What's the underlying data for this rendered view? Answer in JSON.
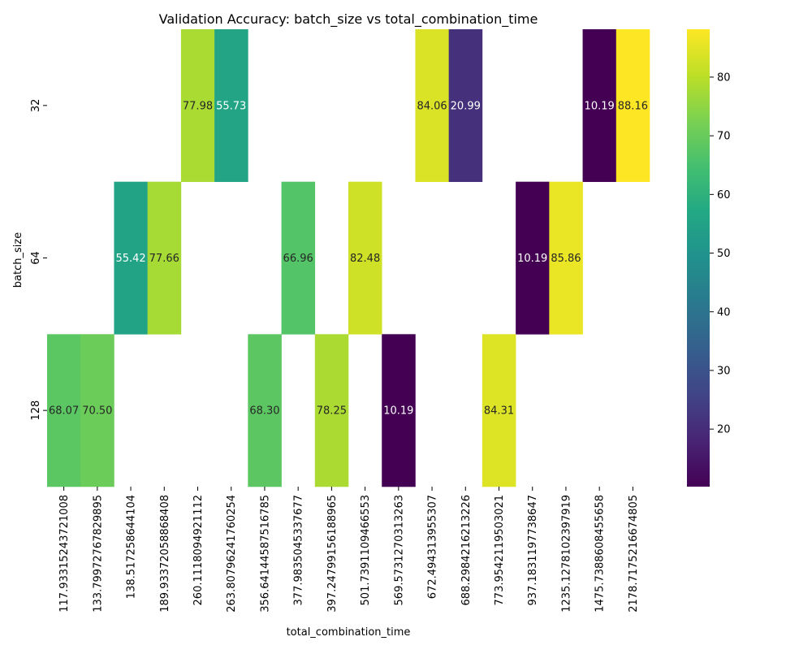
{
  "chart_data": {
    "type": "heatmap",
    "title": "Validation Accuracy: batch_size vs total_combination_time",
    "xlabel": "total_combination_time",
    "ylabel": "batch_size",
    "x_categories": [
      "117.93315243721008",
      "133.79972767829895",
      "138.51725864410400",
      "189.93372058868408",
      "260.11180949211120",
      "263.80796241760254",
      "356.64144587516785",
      "377.98350453376770",
      "397.24799156188965",
      "501.73911094665530",
      "569.57312703132630",
      "672.49431395530700",
      "688.29842162132260",
      "773.95421195030210",
      "937.18311977386470",
      "1235.12781023979190",
      "1475.73886084556580",
      "2178.71752166748050"
    ],
    "x_tick_labels": [
      "117.93315243721008",
      "133.79972767829895",
      "138.517258644104",
      "189.93372058868408",
      "260.1118094921112",
      "263.80796241760254",
      "356.64144587516785",
      "377.9835045337677",
      "397.24799156188965",
      "501.7391109466553",
      "569.5731270313263",
      "672.494313955307",
      "688.2984216213226",
      "773.9542119503021",
      "937.1831197738647",
      "1235.1278102397919",
      "1475.7388608455658",
      "2178.7175216674805"
    ],
    "y_categories": [
      "32",
      "64",
      "128"
    ],
    "values": [
      [
        null,
        null,
        null,
        null,
        77.98,
        55.73,
        null,
        null,
        null,
        null,
        null,
        84.06,
        20.99,
        null,
        null,
        null,
        10.19,
        88.16
      ],
      [
        null,
        null,
        55.42,
        77.66,
        null,
        null,
        null,
        66.96,
        null,
        82.48,
        null,
        null,
        null,
        null,
        10.19,
        85.86,
        null,
        null
      ],
      [
        68.07,
        70.5,
        null,
        null,
        null,
        null,
        68.3,
        null,
        78.25,
        null,
        10.19,
        null,
        null,
        84.31,
        null,
        null,
        null,
        null
      ]
    ],
    "value_labels": [
      [
        null,
        null,
        null,
        null,
        "77.98",
        "55.73",
        null,
        null,
        null,
        null,
        null,
        "84.06",
        "20.99",
        null,
        null,
        null,
        "10.19",
        "88.16"
      ],
      [
        null,
        null,
        "55.42",
        "77.66",
        null,
        null,
        null,
        "66.96",
        null,
        "82.48",
        null,
        null,
        null,
        null,
        "10.19",
        "85.86",
        null,
        null
      ],
      [
        "68.07",
        "70.50",
        null,
        null,
        null,
        null,
        "68.30",
        null,
        "78.25",
        null,
        "10.19",
        null,
        null,
        "84.31",
        null,
        null,
        null,
        null
      ]
    ],
    "colormap": "viridis",
    "colorbar": {
      "range": [
        10.19,
        88.16
      ],
      "ticks": [
        20,
        30,
        40,
        50,
        60,
        70,
        80
      ],
      "tick_labels": [
        "20",
        "30",
        "40",
        "50",
        "60",
        "70",
        "80"
      ]
    },
    "annotate": true,
    "grid": false
  }
}
